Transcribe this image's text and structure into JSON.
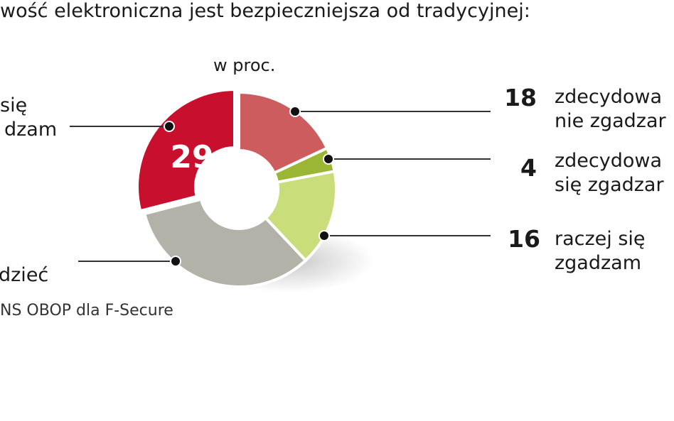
{
  "title": "wość elektroniczna jest bezpieczniejsza od tradycyjnej:",
  "source": "NS OBOP dla F-Secure",
  "chart_data": {
    "type": "pie",
    "variant": "donut",
    "title": "wość elektroniczna jest bezpieczniejsza od tradycyjnej:",
    "unit_label": "w proc.",
    "slices": [
      {
        "label_lines": [
          "zdecydowa",
          "nie zgadzar"
        ],
        "value": 18,
        "value_label": "18",
        "color": "#cd5c5f"
      },
      {
        "label_lines": [
          "zdecydowa",
          "się zgadzar"
        ],
        "value": 4,
        "value_label": "4",
        "color": "#9bb534"
      },
      {
        "label_lines": [
          "raczej się",
          "zgadzam"
        ],
        "value": 16,
        "value_label": "16",
        "color": "#c9de7b"
      },
      {
        "label_lines": [
          "dzieć"
        ],
        "value": 33,
        "value_label": "",
        "color": "#b3b2a8"
      },
      {
        "label_lines": [
          "się",
          "dzam"
        ],
        "value": 29,
        "value_label": "29",
        "color": "#c8102e"
      }
    ]
  }
}
